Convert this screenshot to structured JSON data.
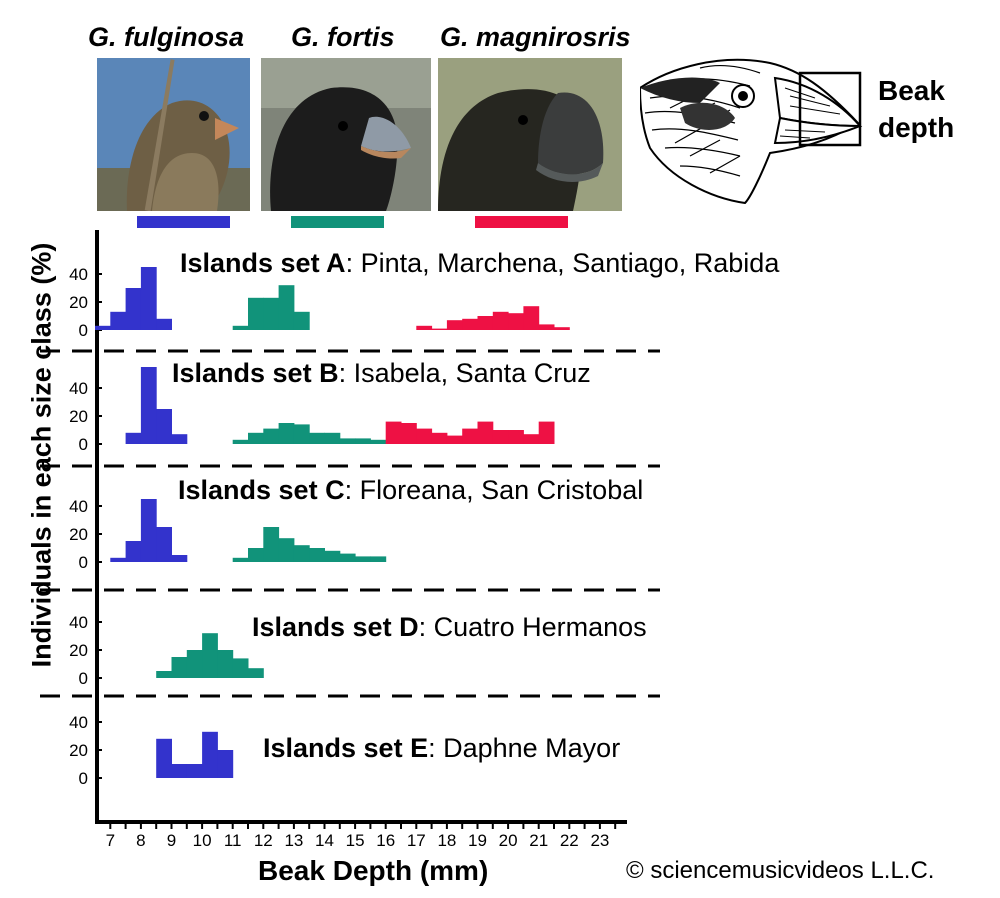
{
  "species": [
    {
      "name": "G. fulginosa",
      "color": "#3333cc"
    },
    {
      "name": "G. fortis",
      "color": "#11937a"
    },
    {
      "name": "G. magnirosris",
      "color": "#ee1144"
    }
  ],
  "beak_label_line1": "Beak",
  "beak_label_line2": "depth",
  "copyright": "© sciencemusicvideos L.L.C.",
  "chart_data": {
    "type": "bar",
    "title": "",
    "xlabel": "Beak Depth (mm)",
    "ylabel": "Individuals in each size class (%)",
    "x_ticks": [
      7,
      8,
      9,
      10,
      11,
      12,
      13,
      14,
      15,
      16,
      17,
      18,
      19,
      20,
      21,
      22,
      23
    ],
    "y_ticks": [
      0,
      20,
      40
    ],
    "ylim": [
      0,
      50
    ],
    "bin_width_mm": 0.5,
    "panels": [
      {
        "label": "Islands set A",
        "islands": "Pinta, Marchena, Santiago, Rabida",
        "series": [
          {
            "species": "G. fulginosa",
            "x": [
              6.75,
              7.25,
              7.75,
              8.25,
              8.75
            ],
            "values": [
              3,
              13,
              30,
              45,
              8
            ]
          },
          {
            "species": "G. fortis",
            "x": [
              11.25,
              11.75,
              12.25,
              12.75,
              13.25
            ],
            "values": [
              3,
              23,
              23,
              32,
              13
            ]
          },
          {
            "species": "G. magnirosris",
            "x": [
              17.25,
              17.75,
              18.25,
              18.75,
              19.25,
              19.75,
              20.25,
              20.75,
              21.25,
              21.75
            ],
            "values": [
              3,
              1,
              7,
              8,
              10,
              13,
              12,
              17,
              4,
              2
            ]
          }
        ]
      },
      {
        "label": "Islands set B",
        "islands": "Isabela, Santa Cruz",
        "series": [
          {
            "species": "G. fulginosa",
            "x": [
              7.75,
              8.25,
              8.75,
              9.25
            ],
            "values": [
              8,
              55,
              25,
              7
            ]
          },
          {
            "species": "G. fortis",
            "x": [
              11.25,
              11.75,
              12.25,
              12.75,
              13.25,
              13.75,
              14.25,
              14.75,
              15.25,
              15.75
            ],
            "values": [
              3,
              8,
              11,
              15,
              14,
              8,
              8,
              4,
              4,
              3
            ]
          },
          {
            "species": "G. magnirosris",
            "x": [
              16.25,
              16.75,
              17.25,
              17.75,
              18.25,
              18.75,
              19.25,
              19.75,
              20.25,
              20.75,
              21.25
            ],
            "values": [
              16,
              15,
              11,
              8,
              6,
              11,
              16,
              10,
              10,
              7,
              16
            ]
          }
        ]
      },
      {
        "label": "Islands set C",
        "islands": "Floreana, San Cristobal",
        "series": [
          {
            "species": "G. fulginosa",
            "x": [
              7.25,
              7.75,
              8.25,
              8.75,
              9.25
            ],
            "values": [
              3,
              15,
              45,
              25,
              5
            ]
          },
          {
            "species": "G. fortis",
            "x": [
              11.25,
              11.75,
              12.25,
              12.75,
              13.25,
              13.75,
              14.25,
              14.75,
              15.25,
              15.75
            ],
            "values": [
              3,
              10,
              25,
              17,
              12,
              10,
              8,
              6,
              4,
              4
            ]
          }
        ]
      },
      {
        "label": "Islands set D",
        "islands": "Cuatro Hermanos",
        "series": [
          {
            "species": "G. fortis",
            "x": [
              8.75,
              9.25,
              9.75,
              10.25,
              10.75,
              11.25,
              11.75
            ],
            "values": [
              5,
              15,
              20,
              32,
              20,
              14,
              7
            ]
          }
        ]
      },
      {
        "label": "Islands set E",
        "islands": "Daphne Mayor",
        "series": [
          {
            "species": "G. fulginosa",
            "x": [
              8.75,
              9.25,
              9.75,
              10.25,
              10.75
            ],
            "values": [
              28,
              10,
              10,
              33,
              20
            ]
          }
        ]
      }
    ]
  }
}
